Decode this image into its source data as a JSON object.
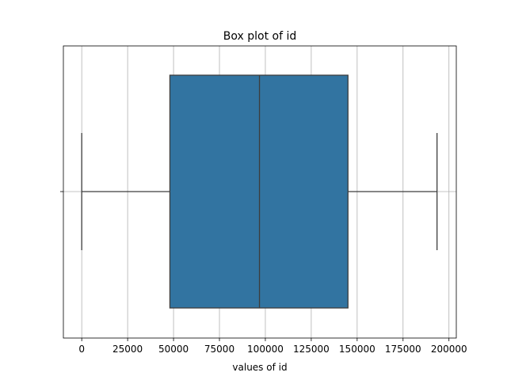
{
  "chart_data": {
    "type": "box",
    "title": "Box plot of id",
    "xlabel": "values of id",
    "ylabel": "",
    "xlim": [
      -10000,
      204000
    ],
    "xticks": [
      0,
      25000,
      50000,
      75000,
      100000,
      125000,
      150000,
      175000,
      200000
    ],
    "xtick_labels": [
      "0",
      "25000",
      "50000",
      "75000",
      "100000",
      "125000",
      "150000",
      "175000",
      "200000"
    ],
    "grid": true,
    "box": {
      "whisker_low": 0,
      "q1": 48000,
      "median": 96800,
      "q3": 145000,
      "whisker_high": 193500
    },
    "colors": {
      "box_fill": "#3274a1",
      "line": "#3d3d3d",
      "grid": "#b0b0b0"
    }
  }
}
